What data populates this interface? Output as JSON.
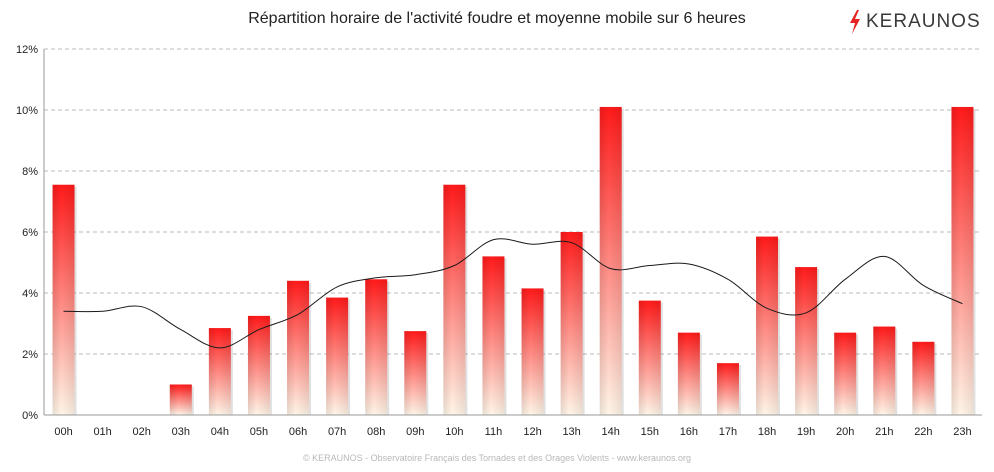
{
  "colors": {
    "bar_top": "#ff1a1a",
    "bar_bottom": "#fff6e8",
    "moving_average_line": "#1a1a1a",
    "logo_bolt": "#e52421",
    "grid": "#bbbbbb"
  },
  "logo": {
    "text": "KERAUNOS",
    "icon": "lightning-bolt-icon"
  },
  "footer": {
    "text": "© KERAUNOS - Observatoire Français des Tornades et des Orages Violents - www.keraunos.org"
  },
  "chart_data": {
    "type": "bar",
    "title": "Répartition horaire de l'activité foudre et moyenne mobile sur 6 heures",
    "xlabel": "",
    "ylabel": "",
    "ylim": [
      0,
      12
    ],
    "yticks": [
      "0%",
      "2%",
      "4%",
      "6%",
      "8%",
      "10%",
      "12%"
    ],
    "y_tick_values": [
      0,
      2,
      4,
      6,
      8,
      10,
      12
    ],
    "grid": true,
    "legend": "none",
    "categories": [
      "00h",
      "01h",
      "02h",
      "03h",
      "04h",
      "05h",
      "06h",
      "07h",
      "08h",
      "09h",
      "10h",
      "11h",
      "12h",
      "13h",
      "14h",
      "15h",
      "16h",
      "17h",
      "18h",
      "19h",
      "20h",
      "21h",
      "22h",
      "23h"
    ],
    "series": [
      {
        "type": "bar",
        "values": [
          7.55,
          0.0,
          0.0,
          1.0,
          2.85,
          3.25,
          4.4,
          3.85,
          4.45,
          2.75,
          7.55,
          5.2,
          4.15,
          6.0,
          10.1,
          3.75,
          2.7,
          1.7,
          5.85,
          4.85,
          2.7,
          2.9,
          2.4,
          10.1
        ]
      },
      {
        "type": "line",
        "values": [
          3.4,
          3.4,
          3.55,
          2.8,
          2.2,
          2.8,
          3.3,
          4.2,
          4.5,
          4.6,
          4.9,
          5.75,
          5.6,
          5.65,
          4.8,
          4.9,
          4.95,
          4.45,
          3.5,
          3.35,
          4.45,
          5.2,
          4.25,
          3.65
        ]
      }
    ]
  }
}
